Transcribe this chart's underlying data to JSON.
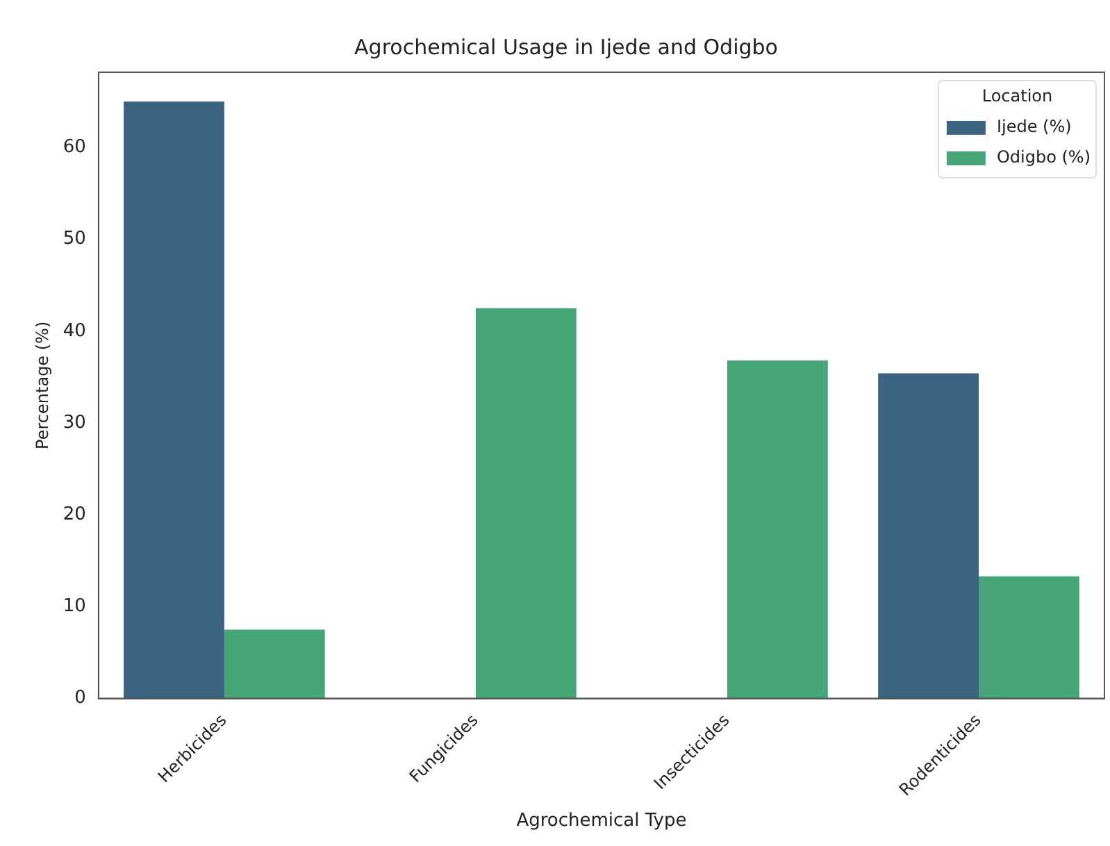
{
  "chart_data": {
    "type": "bar",
    "title": "Agrochemical Usage in Ijede and Odigbo",
    "xlabel": "Agrochemical Type",
    "ylabel": "Percentage (%)",
    "legend_title": "Location",
    "categories": [
      "Herbicides",
      "Fungicides",
      "Insecticides",
      "Rodenticides"
    ],
    "series": [
      {
        "name": "Ijede (%)",
        "color": "#3b627f",
        "values": [
          65,
          0,
          0,
          35.4
        ]
      },
      {
        "name": "Odigbo (%)",
        "color": "#47a677",
        "values": [
          7.5,
          42.5,
          36.8,
          13.3
        ]
      }
    ],
    "ylim": [
      0,
      68.2
    ],
    "yticks": [
      0,
      10,
      20,
      30,
      40,
      50,
      60
    ],
    "grid": false,
    "legend": "top right"
  }
}
